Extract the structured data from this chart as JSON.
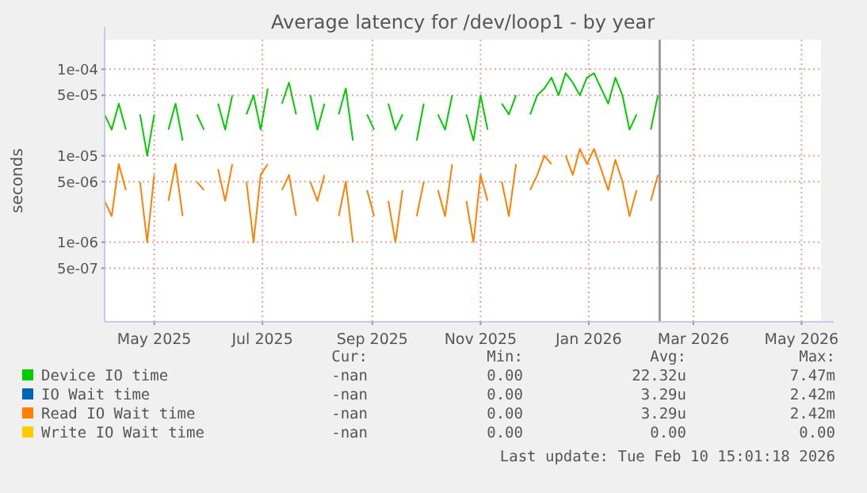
{
  "chart_data": {
    "type": "line",
    "title": "Average latency for /dev/loop1 - by year",
    "ylabel": "seconds",
    "log": "y",
    "grid": true,
    "legend": "bottom",
    "ylim": [
      1.2e-07,
      0.00022
    ],
    "yticks": [
      {
        "value": 0.0001,
        "label": "1e-04"
      },
      {
        "value": 5e-05,
        "label": "5e-05"
      },
      {
        "value": 1e-05,
        "label": "1e-05"
      },
      {
        "value": 5e-06,
        "label": "5e-06"
      },
      {
        "value": 1e-06,
        "label": "1e-06"
      },
      {
        "value": 5e-07,
        "label": "5e-07"
      }
    ],
    "xlim": [
      "2025-04-03",
      "2026-05-12"
    ],
    "xticks": [
      {
        "value": "2025-05",
        "label": "May 2025"
      },
      {
        "value": "2025-07",
        "label": "Jul 2025"
      },
      {
        "value": "2025-09",
        "label": "Sep 2025"
      },
      {
        "value": "2025-11",
        "label": "Nov 2025"
      },
      {
        "value": "2026-01",
        "label": "Jan 2026"
      },
      {
        "value": "2026-03",
        "label": "Mar 2026"
      },
      {
        "value": "2026-05",
        "label": "May 2026"
      }
    ],
    "x": [
      "2025-04-03",
      "2025-04-07",
      "2025-04-11",
      "2025-04-15",
      "2025-04-19",
      "2025-04-23",
      "2025-04-27",
      "2025-05-01",
      "2025-05-05",
      "2025-05-09",
      "2025-05-13",
      "2025-05-17",
      "2025-05-21",
      "2025-05-25",
      "2025-05-29",
      "2025-06-02",
      "2025-06-06",
      "2025-06-10",
      "2025-06-14",
      "2025-06-18",
      "2025-06-22",
      "2025-06-26",
      "2025-06-30",
      "2025-07-04",
      "2025-07-08",
      "2025-07-12",
      "2025-07-16",
      "2025-07-20",
      "2025-07-24",
      "2025-07-28",
      "2025-08-01",
      "2025-08-05",
      "2025-08-09",
      "2025-08-13",
      "2025-08-17",
      "2025-08-21",
      "2025-08-25",
      "2025-08-29",
      "2025-09-02",
      "2025-09-06",
      "2025-09-10",
      "2025-09-14",
      "2025-09-18",
      "2025-09-22",
      "2025-09-26",
      "2025-09-30",
      "2025-10-04",
      "2025-10-08",
      "2025-10-12",
      "2025-10-16",
      "2025-10-20",
      "2025-10-24",
      "2025-10-28",
      "2025-11-01",
      "2025-11-05",
      "2025-11-09",
      "2025-11-13",
      "2025-11-17",
      "2025-11-21",
      "2025-11-25",
      "2025-11-29",
      "2025-12-03",
      "2025-12-07",
      "2025-12-11",
      "2025-12-15",
      "2025-12-19",
      "2025-12-23",
      "2025-12-27",
      "2025-12-31",
      "2026-01-04",
      "2026-01-08",
      "2026-01-12",
      "2026-01-16",
      "2026-01-20",
      "2026-01-24",
      "2026-01-28",
      "2026-02-01",
      "2026-02-05",
      "2026-02-09"
    ],
    "series": [
      {
        "name": "Device IO time",
        "color": "#00cc00",
        "values": [
          3e-05,
          2e-05,
          4e-05,
          2e-05,
          null,
          3e-05,
          1e-05,
          3e-05,
          null,
          2e-05,
          4e-05,
          1.5e-05,
          null,
          3e-05,
          2e-05,
          null,
          4e-05,
          2e-05,
          5e-05,
          null,
          3e-05,
          5e-05,
          2e-05,
          6e-05,
          null,
          4e-05,
          7e-05,
          3e-05,
          null,
          5e-05,
          2e-05,
          4e-05,
          null,
          3e-05,
          6e-05,
          1.5e-05,
          null,
          3e-05,
          2e-05,
          null,
          4e-05,
          2e-05,
          3e-05,
          null,
          1.5e-05,
          4e-05,
          null,
          3e-05,
          2e-05,
          5e-05,
          null,
          3e-05,
          1.5e-05,
          5e-05,
          2e-05,
          null,
          4e-05,
          3e-05,
          5e-05,
          null,
          3e-05,
          5e-05,
          6e-05,
          8e-05,
          5e-05,
          9e-05,
          7e-05,
          5e-05,
          8e-05,
          9e-05,
          6e-05,
          4e-05,
          8e-05,
          5e-05,
          2e-05,
          3e-05,
          null,
          2e-05,
          5e-05
        ]
      },
      {
        "name": "IO Wait time",
        "color": "#0066b3",
        "values": [
          null,
          null,
          null,
          null,
          null,
          null,
          null,
          null,
          null,
          null,
          null,
          null,
          null,
          null,
          null,
          null,
          null,
          null,
          null,
          null,
          null,
          null,
          null,
          null,
          null,
          null,
          null,
          null,
          null,
          null,
          null,
          null,
          null,
          null,
          null,
          null,
          null,
          null,
          null,
          null,
          null,
          null,
          null,
          null,
          null,
          null,
          null,
          null,
          null,
          null,
          null,
          null,
          null,
          null,
          null,
          null,
          null,
          null,
          null,
          null,
          null,
          null,
          null,
          null,
          null,
          null,
          null,
          null,
          null,
          null,
          null,
          null,
          null,
          null,
          null,
          null,
          null,
          null,
          null
        ]
      },
      {
        "name": "Read IO Wait time",
        "color": "#ff8000",
        "values": [
          3e-06,
          2e-06,
          8e-06,
          4e-06,
          null,
          5e-06,
          1e-06,
          6e-06,
          null,
          3e-06,
          8e-06,
          2e-06,
          null,
          5e-06,
          4e-06,
          null,
          7e-06,
          3e-06,
          8e-06,
          null,
          5e-06,
          1e-06,
          6e-06,
          8e-06,
          null,
          4e-06,
          6e-06,
          2e-06,
          null,
          5e-06,
          3e-06,
          6e-06,
          null,
          2e-06,
          5e-06,
          1e-06,
          null,
          4e-06,
          2e-06,
          null,
          3e-06,
          1e-06,
          4e-06,
          null,
          2e-06,
          5e-06,
          null,
          4e-06,
          2e-06,
          8e-06,
          null,
          3e-06,
          1e-06,
          6e-06,
          3e-06,
          null,
          5e-06,
          2e-06,
          8e-06,
          null,
          4e-06,
          6e-06,
          1e-05,
          8e-06,
          null,
          1e-05,
          6e-06,
          1.2e-05,
          8e-06,
          1.2e-05,
          7e-06,
          4e-06,
          9e-06,
          5e-06,
          2e-06,
          4e-06,
          null,
          3e-06,
          6e-06
        ]
      },
      {
        "name": "Write IO Wait time",
        "color": "#ffcc00",
        "values": [
          null,
          null,
          null,
          null,
          null,
          null,
          null,
          null,
          null,
          null,
          null,
          null,
          null,
          null,
          null,
          null,
          null,
          null,
          null,
          null,
          null,
          null,
          null,
          null,
          null,
          null,
          null,
          null,
          null,
          null,
          null,
          null,
          null,
          null,
          null,
          null,
          null,
          null,
          null,
          null,
          null,
          null,
          null,
          null,
          null,
          null,
          null,
          null,
          null,
          null,
          null,
          null,
          null,
          null,
          null,
          null,
          null,
          null,
          null,
          null,
          null,
          null,
          null,
          null,
          null,
          null,
          null,
          null,
          null,
          null,
          null,
          null,
          null,
          null,
          null,
          null,
          null,
          null,
          null
        ]
      }
    ],
    "ref_lines": [
      {
        "axis": "x",
        "value": "2026-02-10",
        "color": "#999999"
      }
    ],
    "annotations": [
      "Cur:",
      "Min:",
      "Avg:",
      "Max:",
      "-nan",
      "0.00",
      "22.32u",
      "7.47m",
      "-nan",
      "0.00",
      "3.29u",
      "2.42m",
      "-nan",
      "0.00",
      "3.29u",
      "2.42m",
      "-nan",
      "0.00",
      "0.00",
      "0.00",
      "Last update: Tue Feb 10 15:01:18 2026"
    ]
  }
}
